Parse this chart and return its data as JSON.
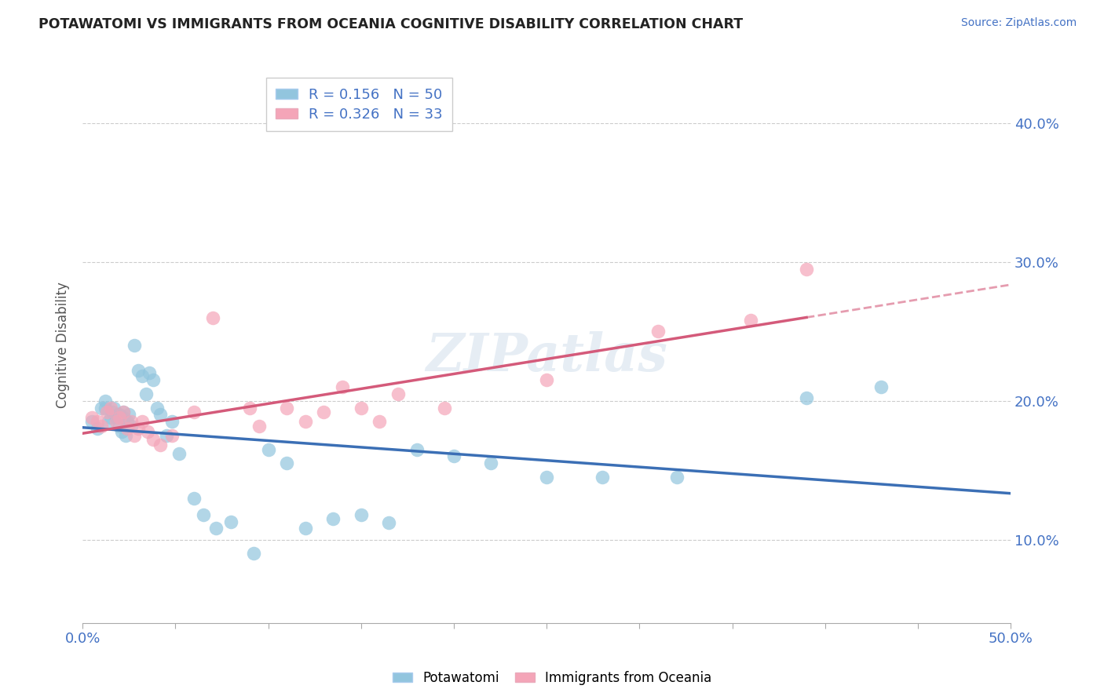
{
  "title": "POTAWATOMI VS IMMIGRANTS FROM OCEANIA COGNITIVE DISABILITY CORRELATION CHART",
  "source": "Source: ZipAtlas.com",
  "ylabel": "Cognitive Disability",
  "xlim": [
    0.0,
    0.5
  ],
  "ylim": [
    0.04,
    0.44
  ],
  "xticks": [
    0.0,
    0.05,
    0.1,
    0.15,
    0.2,
    0.25,
    0.3,
    0.35,
    0.4,
    0.45,
    0.5
  ],
  "yticks": [
    0.1,
    0.2,
    0.3,
    0.4
  ],
  "series1_label": "Potawatomi",
  "series2_label": "Immigrants from Oceania",
  "series1_R": 0.156,
  "series1_N": 50,
  "series2_R": 0.326,
  "series2_N": 33,
  "series1_color": "#92c5de",
  "series2_color": "#f4a5b8",
  "trendline1_color": "#3b6fb5",
  "trendline2_color": "#d45a7a",
  "background_color": "#ffffff",
  "watermark": "ZIPatlas",
  "series1_x": [
    0.005,
    0.008,
    0.01,
    0.012,
    0.012,
    0.014,
    0.015,
    0.016,
    0.017,
    0.018,
    0.019,
    0.02,
    0.02,
    0.021,
    0.022,
    0.022,
    0.023,
    0.024,
    0.025,
    0.026,
    0.028,
    0.03,
    0.032,
    0.034,
    0.036,
    0.038,
    0.04,
    0.042,
    0.045,
    0.048,
    0.052,
    0.06,
    0.065,
    0.072,
    0.08,
    0.092,
    0.1,
    0.11,
    0.12,
    0.135,
    0.15,
    0.165,
    0.18,
    0.2,
    0.22,
    0.25,
    0.28,
    0.32,
    0.39,
    0.43
  ],
  "series1_y": [
    0.185,
    0.18,
    0.195,
    0.195,
    0.2,
    0.185,
    0.188,
    0.192,
    0.195,
    0.188,
    0.19,
    0.182,
    0.19,
    0.178,
    0.188,
    0.192,
    0.175,
    0.185,
    0.19,
    0.182,
    0.24,
    0.222,
    0.218,
    0.205,
    0.22,
    0.215,
    0.195,
    0.19,
    0.175,
    0.185,
    0.162,
    0.13,
    0.118,
    0.108,
    0.113,
    0.09,
    0.165,
    0.155,
    0.108,
    0.115,
    0.118,
    0.112,
    0.165,
    0.16,
    0.155,
    0.145,
    0.145,
    0.145,
    0.202,
    0.21
  ],
  "series2_x": [
    0.005,
    0.008,
    0.01,
    0.013,
    0.015,
    0.018,
    0.02,
    0.022,
    0.024,
    0.026,
    0.028,
    0.03,
    0.032,
    0.035,
    0.038,
    0.042,
    0.048,
    0.06,
    0.07,
    0.09,
    0.095,
    0.11,
    0.12,
    0.13,
    0.14,
    0.15,
    0.16,
    0.17,
    0.195,
    0.25,
    0.31,
    0.36,
    0.39
  ],
  "series2_y": [
    0.188,
    0.185,
    0.182,
    0.192,
    0.195,
    0.185,
    0.188,
    0.192,
    0.18,
    0.185,
    0.175,
    0.18,
    0.185,
    0.178,
    0.172,
    0.168,
    0.175,
    0.192,
    0.26,
    0.195,
    0.182,
    0.195,
    0.185,
    0.192,
    0.21,
    0.195,
    0.185,
    0.205,
    0.195,
    0.215,
    0.25,
    0.258,
    0.295
  ]
}
